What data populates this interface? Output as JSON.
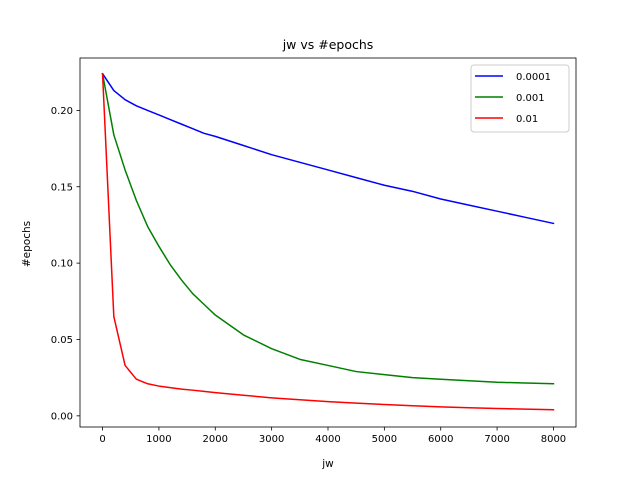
{
  "chart_data": {
    "type": "line",
    "title": "jw vs #epochs",
    "xlabel": "jw",
    "ylabel": "#epochs",
    "xlim": [
      -400,
      8400
    ],
    "ylim": [
      -0.0073,
      0.2343
    ],
    "xticks": [
      0,
      1000,
      2000,
      3000,
      4000,
      5000,
      6000,
      7000,
      8000
    ],
    "xtick_labels": [
      "0",
      "1000",
      "2000",
      "3000",
      "4000",
      "5000",
      "6000",
      "7000",
      "8000"
    ],
    "yticks": [
      0.0,
      0.05,
      0.1,
      0.15,
      0.2
    ],
    "ytick_labels": [
      "0.00",
      "0.05",
      "0.10",
      "0.15",
      "0.20"
    ],
    "grid": false,
    "legend_position": "top-right",
    "x": [
      0,
      200,
      400,
      600,
      800,
      1000,
      1200,
      1400,
      1600,
      1800,
      2000,
      2500,
      3000,
      3500,
      4000,
      4500,
      5000,
      5500,
      6000,
      6500,
      7000,
      7500,
      8000
    ],
    "series": [
      {
        "name": "0.0001",
        "color": "#0000ff",
        "values": [
          0.224,
          0.213,
          0.207,
          0.203,
          0.2,
          0.197,
          0.194,
          0.191,
          0.188,
          0.185,
          0.183,
          0.177,
          0.171,
          0.166,
          0.161,
          0.156,
          0.151,
          0.147,
          0.142,
          0.138,
          0.134,
          0.13,
          0.126
        ]
      },
      {
        "name": "0.001",
        "color": "#008000",
        "values": [
          0.224,
          0.184,
          0.161,
          0.141,
          0.124,
          0.111,
          0.099,
          0.089,
          0.08,
          0.073,
          0.066,
          0.053,
          0.044,
          0.037,
          0.033,
          0.029,
          0.027,
          0.025,
          0.024,
          0.023,
          0.022,
          0.0215,
          0.021
        ]
      },
      {
        "name": "0.01",
        "color": "#ff0000",
        "values": [
          0.224,
          0.065,
          0.033,
          0.024,
          0.021,
          0.0195,
          0.0185,
          0.0175,
          0.0168,
          0.016,
          0.0152,
          0.0135,
          0.0118,
          0.0105,
          0.0093,
          0.0083,
          0.0074,
          0.0066,
          0.0059,
          0.0053,
          0.0048,
          0.0044,
          0.004
        ]
      }
    ]
  }
}
